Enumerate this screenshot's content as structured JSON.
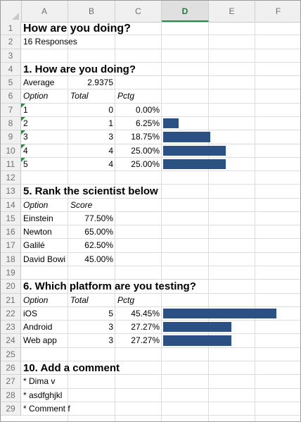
{
  "columns": [
    "A",
    "B",
    "C",
    "D",
    "E",
    "F"
  ],
  "rows": [
    "1",
    "2",
    "3",
    "4",
    "5",
    "6",
    "7",
    "8",
    "9",
    "10",
    "11",
    "12",
    "13",
    "14",
    "15",
    "16",
    "17",
    "18",
    "19",
    "20",
    "21",
    "22",
    "23",
    "24",
    "25",
    "26",
    "27",
    "28",
    "29"
  ],
  "title": "How are you doing?",
  "responses": "16 Responses",
  "q1": {
    "heading": "1. How are you doing?",
    "average_label": "Average",
    "average_value": "2.9375",
    "headers": {
      "option": "Option",
      "total": "Total",
      "pctg": "Pctg"
    },
    "rows": [
      {
        "option": "1",
        "total": "0",
        "pctg": "0.00%"
      },
      {
        "option": "2",
        "total": "1",
        "pctg": "6.25%"
      },
      {
        "option": "3",
        "total": "3",
        "pctg": "18.75%"
      },
      {
        "option": "4",
        "total": "4",
        "pctg": "25.00%"
      },
      {
        "option": "5",
        "total": "4",
        "pctg": "25.00%"
      }
    ]
  },
  "q5": {
    "heading": "5. Rank the scientist below",
    "headers": {
      "option": "Option",
      "score": "Score"
    },
    "rows": [
      {
        "option": "Einstein",
        "score": "77.50%"
      },
      {
        "option": "Newton",
        "score": "65.00%"
      },
      {
        "option": "Galilé",
        "score": "62.50%"
      },
      {
        "option": "David Bowi",
        "score": "45.00%"
      }
    ]
  },
  "q6": {
    "heading": "6. Which platform are you testing?",
    "headers": {
      "option": "Option",
      "total": "Total",
      "pctg": "Pctg"
    },
    "rows": [
      {
        "option": "iOS",
        "total": "5",
        "pctg": "45.45%"
      },
      {
        "option": "Android",
        "total": "3",
        "pctg": "27.27%"
      },
      {
        "option": "Web app",
        "total": "3",
        "pctg": "27.27%"
      }
    ]
  },
  "q10": {
    "heading": "10. Add a comment",
    "comments": [
      "* Dima v",
      "* asdfghjkl",
      "* Comment f"
    ]
  },
  "colors": {
    "bar": "#2a5084",
    "active_header": "#1d7a3a",
    "comment_marker": "#2e8b3c"
  },
  "chart_data": [
    {
      "type": "bar",
      "categories": [
        "1",
        "2",
        "3",
        "4",
        "5"
      ],
      "values": [
        0,
        6.25,
        18.75,
        25,
        25
      ]
    },
    {
      "type": "bar",
      "categories": [
        "iOS",
        "Android",
        "Web app"
      ],
      "values": [
        45.45,
        27.27,
        27.27
      ]
    }
  ]
}
